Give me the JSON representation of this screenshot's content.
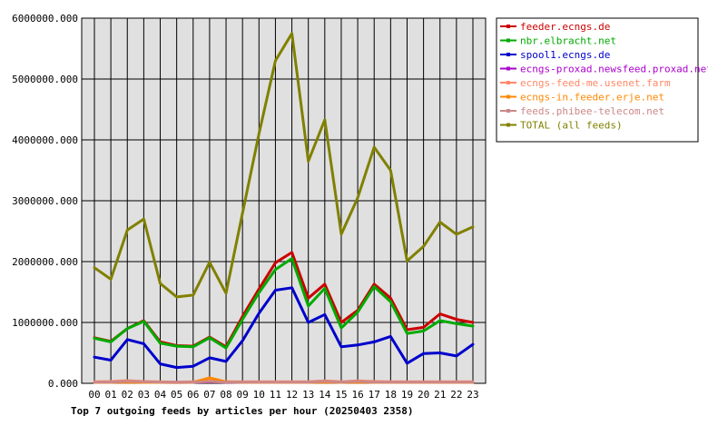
{
  "chart_data": {
    "type": "line",
    "title": "Top 7 outgoing feeds by articles per hour (20250403 2358)",
    "categories": [
      "00",
      "01",
      "02",
      "03",
      "04",
      "05",
      "06",
      "07",
      "08",
      "09",
      "10",
      "11",
      "12",
      "13",
      "14",
      "15",
      "16",
      "17",
      "18",
      "19",
      "20",
      "21",
      "22",
      "23"
    ],
    "ylim": [
      0,
      6000000
    ],
    "yticks": [
      "0.000",
      "1000000.000",
      "2000000.000",
      "3000000.000",
      "4000000.000",
      "5000000.000",
      "6000000.000"
    ],
    "ytick_values": [
      0,
      1000000,
      2000000,
      3000000,
      4000000,
      5000000,
      6000000
    ],
    "grid": true,
    "legend_position": "right",
    "plot_background": "#e0e0e0",
    "series": [
      {
        "name": "feeder.ecngs.de",
        "color": "#cc0000",
        "values": [
          750000,
          690000,
          900000,
          1030000,
          680000,
          620000,
          610000,
          760000,
          600000,
          1100000,
          1550000,
          1980000,
          2150000,
          1400000,
          1630000,
          1000000,
          1200000,
          1630000,
          1400000,
          880000,
          920000,
          1140000,
          1050000,
          1000000
        ]
      },
      {
        "name": "nbr.elbracht.net",
        "color": "#00aa00",
        "values": [
          740000,
          680000,
          900000,
          1020000,
          660000,
          610000,
          600000,
          750000,
          580000,
          1050000,
          1490000,
          1870000,
          2050000,
          1270000,
          1560000,
          910000,
          1170000,
          1590000,
          1340000,
          820000,
          860000,
          1030000,
          980000,
          940000
        ]
      },
      {
        "name": "spool1.ecngs.de",
        "color": "#0000cc",
        "values": [
          430000,
          380000,
          720000,
          650000,
          320000,
          260000,
          280000,
          420000,
          360000,
          700000,
          1150000,
          1530000,
          1570000,
          1000000,
          1130000,
          600000,
          630000,
          680000,
          770000,
          330000,
          490000,
          500000,
          450000,
          640000
        ]
      },
      {
        "name": "ecngs-proxad.newsfeed.proxad.net",
        "color": "#aa00cc",
        "values": [
          20000,
          20000,
          30000,
          25000,
          20000,
          20000,
          20000,
          25000,
          20000,
          20000,
          20000,
          20000,
          20000,
          20000,
          25000,
          20000,
          25000,
          20000,
          20000,
          20000,
          20000,
          20000,
          20000,
          20000
        ]
      },
      {
        "name": "ecngs-feed-me.usenet.farm",
        "color": "#ff8866",
        "values": [
          25000,
          30000,
          45000,
          30000,
          25000,
          20000,
          25000,
          50000,
          25000,
          25000,
          25000,
          25000,
          25000,
          25000,
          40000,
          25000,
          40000,
          30000,
          25000,
          25000,
          25000,
          25000,
          25000,
          25000
        ]
      },
      {
        "name": "ecngs-in.feeder.erje.net",
        "color": "#ff8800",
        "values": [
          15000,
          15000,
          20000,
          15000,
          15000,
          10000,
          15000,
          90000,
          25000,
          15000,
          15000,
          15000,
          15000,
          15000,
          20000,
          15000,
          20000,
          15000,
          15000,
          15000,
          15000,
          15000,
          15000,
          15000
        ]
      },
      {
        "name": "feeds.phibee-telecom.net",
        "color": "#cc8888",
        "values": [
          20000,
          20000,
          35000,
          25000,
          20000,
          15000,
          20000,
          30000,
          20000,
          20000,
          20000,
          20000,
          20000,
          20000,
          35000,
          20000,
          35000,
          20000,
          20000,
          20000,
          20000,
          20000,
          20000,
          20000
        ]
      },
      {
        "name": "TOTAL (all feeds)",
        "color": "#808000",
        "values": [
          1900000,
          1710000,
          2520000,
          2700000,
          1640000,
          1420000,
          1450000,
          1990000,
          1480000,
          2800000,
          4100000,
          5300000,
          5750000,
          3650000,
          4330000,
          2450000,
          3050000,
          3880000,
          3500000,
          2010000,
          2250000,
          2650000,
          2450000,
          2570000
        ]
      }
    ]
  }
}
